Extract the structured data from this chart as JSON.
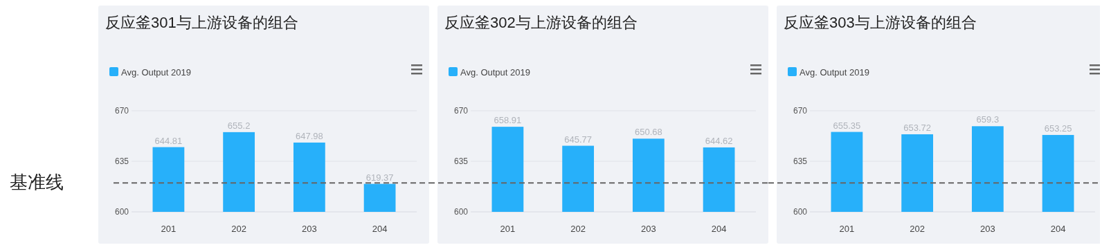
{
  "chart_data": [
    {
      "type": "bar",
      "title": "反应釜301与上游设备的组合",
      "categories": [
        "201",
        "202",
        "203",
        "204"
      ],
      "series": [
        {
          "name": "Avg. Output 2019",
          "color": "#27b0fa",
          "values": [
            644.81,
            655.2,
            647.98,
            619.37
          ]
        }
      ],
      "ylim": [
        600,
        670
      ],
      "yticks": [
        600,
        635,
        670
      ],
      "grid": "y",
      "legend": "top left",
      "data_labels": true,
      "ref_lines": [
        {
          "axis": "y",
          "value": 620,
          "label": "基准线",
          "color": "#666666",
          "line_style": "dashed"
        }
      ]
    },
    {
      "type": "bar",
      "title": "反应釜302与上游设备的组合",
      "categories": [
        "201",
        "202",
        "203",
        "204"
      ],
      "series": [
        {
          "name": "Avg. Output 2019",
          "color": "#27b0fa",
          "values": [
            658.91,
            645.77,
            650.68,
            644.62
          ]
        }
      ],
      "ylim": [
        600,
        670
      ],
      "yticks": [
        600,
        635,
        670
      ],
      "grid": "y",
      "legend": "top left",
      "data_labels": true,
      "ref_lines": [
        {
          "axis": "y",
          "value": 620,
          "color": "#666666",
          "line_style": "dashed"
        }
      ]
    },
    {
      "type": "bar",
      "title": "反应釜303与上游设备的组合",
      "categories": [
        "201",
        "202",
        "203",
        "204"
      ],
      "series": [
        {
          "name": "Avg. Output 2019",
          "color": "#27b0fa",
          "values": [
            655.35,
            653.72,
            659.3,
            653.25
          ]
        }
      ],
      "ylim": [
        600,
        670
      ],
      "yticks": [
        600,
        635,
        670
      ],
      "grid": "y",
      "legend": "top left",
      "data_labels": true,
      "ref_lines": [
        {
          "axis": "y",
          "value": 620,
          "color": "#666666",
          "line_style": "dashed"
        }
      ]
    }
  ]
}
